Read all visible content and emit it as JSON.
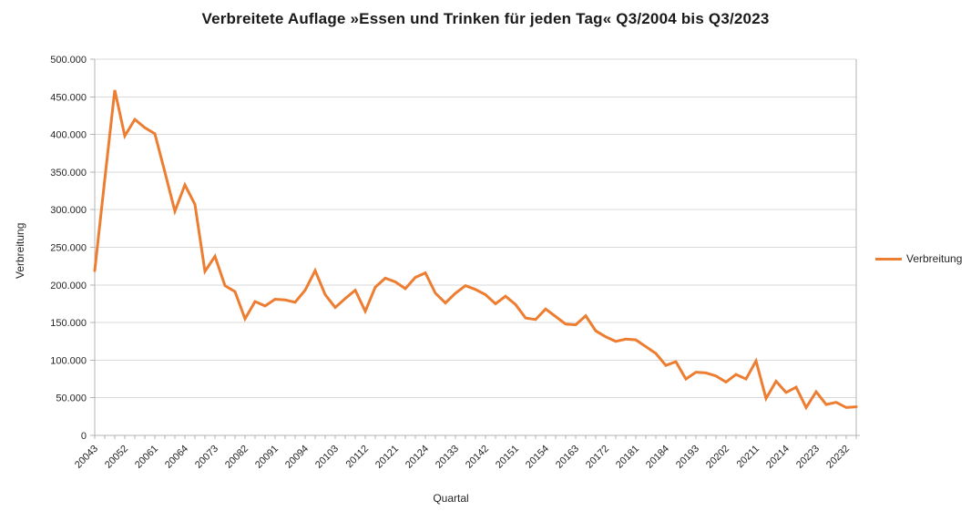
{
  "title": "Verbreitete Auflage »Essen und Trinken für jeden Tag« Q3/2004 bis Q3/2023",
  "legend": {
    "label": "Verbreitung",
    "position": "right"
  },
  "colors": {
    "series": "#ED7D31",
    "grid": "#d9d9d9",
    "axis": "#b3b3b3",
    "text": "#262626",
    "background": "#ffffff"
  },
  "chart_data": {
    "type": "line",
    "title": "Verbreitete Auflage »Essen und Trinken für jeden Tag« Q3/2004 bis Q3/2023",
    "xlabel": "Quartal",
    "ylabel": "Verbreitung",
    "ylim": [
      0,
      500000
    ],
    "ytick_step": 50000,
    "ytick_labels_bottom_to_top": [
      "0",
      "50.000",
      "100.000",
      "150.000",
      "200.000",
      "250.000",
      "300.000",
      "350.000",
      "400.000",
      "450.000",
      "500.000"
    ],
    "grid": "horizontal",
    "legend_entries": [
      "Verbreitung"
    ],
    "x_labeled_every": 3,
    "xtick_labels_shown": [
      "20043",
      "20052",
      "20061",
      "20064",
      "20073",
      "20082",
      "20091",
      "20094",
      "20103",
      "20112",
      "20121",
      "20124",
      "20133",
      "20142",
      "20151",
      "20154",
      "20163",
      "20172",
      "20181",
      "20184",
      "20193",
      "20202",
      "20211",
      "20214",
      "20223",
      "20232"
    ],
    "categories": [
      "20043",
      "20044",
      "20051",
      "20052",
      "20053",
      "20054",
      "20061",
      "20062",
      "20063",
      "20064",
      "20071",
      "20072",
      "20073",
      "20074",
      "20081",
      "20082",
      "20083",
      "20084",
      "20091",
      "20092",
      "20093",
      "20094",
      "20101",
      "20102",
      "20103",
      "20104",
      "20111",
      "20112",
      "20113",
      "20114",
      "20121",
      "20122",
      "20123",
      "20124",
      "20131",
      "20132",
      "20133",
      "20134",
      "20141",
      "20142",
      "20143",
      "20144",
      "20151",
      "20152",
      "20153",
      "20154",
      "20161",
      "20162",
      "20163",
      "20164",
      "20171",
      "20172",
      "20173",
      "20174",
      "20181",
      "20182",
      "20183",
      "20184",
      "20191",
      "20192",
      "20193",
      "20194",
      "20201",
      "20202",
      "20203",
      "20204",
      "20211",
      "20212",
      "20213",
      "20214",
      "20221",
      "20222",
      "20223",
      "20224",
      "20231",
      "20232",
      "20233"
    ],
    "values": [
      219000,
      340000,
      459000,
      398000,
      420000,
      409000,
      401000,
      350000,
      298000,
      333000,
      307000,
      218000,
      238000,
      199000,
      191000,
      155000,
      178000,
      172000,
      181000,
      180000,
      177000,
      193000,
      219000,
      187000,
      170000,
      182000,
      193000,
      165000,
      197000,
      209000,
      204000,
      195000,
      210000,
      216000,
      189000,
      176000,
      189000,
      199000,
      194000,
      187000,
      175000,
      185000,
      174000,
      156000,
      154000,
      168000,
      158000,
      148000,
      147000,
      159000,
      139000,
      131000,
      125000,
      128000,
      127000,
      118000,
      109000,
      93000,
      98000,
      75000,
      84000,
      83000,
      79000,
      71000,
      81000,
      75000,
      99000,
      49000,
      72000,
      57000,
      64000,
      37000,
      58000,
      41000,
      44000,
      37000,
      38000
    ]
  }
}
